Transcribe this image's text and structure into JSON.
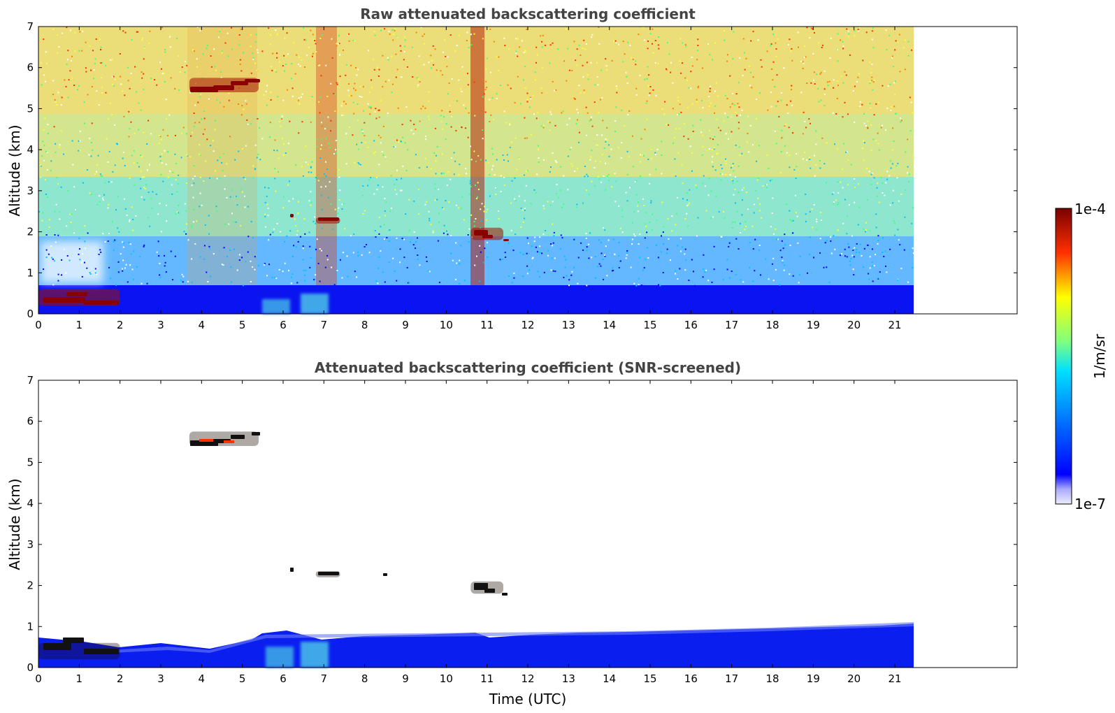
{
  "chart_data": [
    {
      "type": "heatmap",
      "title": "Raw attenuated backscattering coefficient",
      "xlabel": "",
      "ylabel": "Altitude (km)",
      "xlim": [
        0,
        24
      ],
      "ylim": [
        0,
        7
      ],
      "x_ticks": [
        "0",
        "1",
        "2",
        "3",
        "4",
        "5",
        "6",
        "7",
        "8",
        "9",
        "10",
        "11",
        "12",
        "13",
        "14",
        "15",
        "16",
        "17",
        "18",
        "19",
        "20",
        "21"
      ],
      "y_ticks": [
        "0",
        "1",
        "2",
        "3",
        "4",
        "5",
        "6",
        "7"
      ],
      "data_extent_time": [
        0,
        21.45
      ],
      "grid": false,
      "features": [
        {
          "kind": "boundary_layer",
          "time": [
            0,
            21.45
          ],
          "altitude_km": [
            0,
            0.5
          ],
          "level": "low"
        },
        {
          "kind": "cloud",
          "time": [
            3.7,
            5.4
          ],
          "altitude_km": [
            5.4,
            5.75
          ],
          "level": "high"
        },
        {
          "kind": "cloud",
          "time": [
            6.8,
            7.4
          ],
          "altitude_km": [
            2.2,
            2.35
          ],
          "level": "high"
        },
        {
          "kind": "cloud",
          "time": [
            10.6,
            11.4
          ],
          "altitude_km": [
            1.8,
            2.1
          ],
          "level": "high"
        },
        {
          "kind": "aerosol_layer",
          "time": [
            0,
            2.0
          ],
          "altitude_km": [
            0.2,
            0.6
          ],
          "level": "high"
        }
      ]
    },
    {
      "type": "heatmap",
      "title": "Attenuated backscattering coefficient (SNR-screened)",
      "xlabel": "Time (UTC)",
      "ylabel": "Altitude (km)",
      "xlim": [
        0,
        24
      ],
      "ylim": [
        0,
        7
      ],
      "x_ticks": [
        "0",
        "1",
        "2",
        "3",
        "4",
        "5",
        "6",
        "7",
        "8",
        "9",
        "10",
        "11",
        "12",
        "13",
        "14",
        "15",
        "16",
        "17",
        "18",
        "19",
        "20",
        "21"
      ],
      "y_ticks": [
        "0",
        "1",
        "2",
        "3",
        "4",
        "5",
        "6",
        "7"
      ],
      "data_extent_time": [
        0,
        21.45
      ],
      "grid": false,
      "features": [
        {
          "kind": "boundary_layer",
          "time": [
            0,
            21.45
          ],
          "altitude_km": [
            0,
            0.8
          ],
          "level": "low"
        },
        {
          "kind": "cloud",
          "time": [
            3.7,
            5.4
          ],
          "altitude_km": [
            5.4,
            5.75
          ],
          "level": "high"
        },
        {
          "kind": "cloud",
          "time": [
            6.8,
            7.4
          ],
          "altitude_km": [
            2.2,
            2.35
          ],
          "level": "high"
        },
        {
          "kind": "cloud",
          "time": [
            10.6,
            11.4
          ],
          "altitude_km": [
            1.8,
            2.1
          ],
          "level": "high"
        },
        {
          "kind": "aerosol_layer",
          "time": [
            0,
            2.0
          ],
          "altitude_km": [
            0.2,
            0.6
          ],
          "level": "high"
        }
      ]
    }
  ],
  "colorbar": {
    "label": "1/m/sr",
    "max_label": "1e-4",
    "min_label": "1e-7",
    "scale": "log",
    "range": [
      1e-07,
      0.0001
    ],
    "colormap": "jet",
    "colors": [
      "#ececfa",
      "#0000ff",
      "#00d0ff",
      "#7fff7f",
      "#ffff00",
      "#ff3000",
      "#7a0000"
    ]
  }
}
